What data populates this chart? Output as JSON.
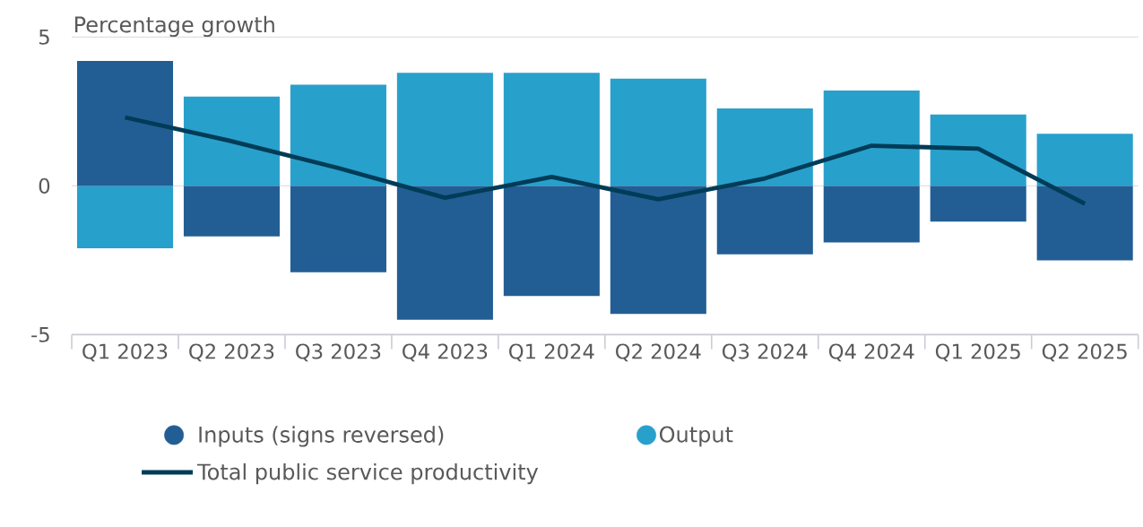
{
  "chart_data": {
    "type": "bar",
    "ylabel": "Percentage growth",
    "categories": [
      "Q1 2023",
      "Q2 2023",
      "Q3 2023",
      "Q4 2023",
      "Q1 2024",
      "Q2 2024",
      "Q3 2024",
      "Q4 2024",
      "Q1 2025",
      "Q2 2025"
    ],
    "series": [
      {
        "name": "Inputs (signs reversed)",
        "color": "#225e94",
        "values": [
          4.2,
          -1.7,
          -2.9,
          -4.5,
          -3.7,
          -4.3,
          -2.3,
          -1.9,
          -1.2,
          -2.5
        ]
      },
      {
        "name": "Output",
        "color": "#28a0cc",
        "values": [
          -2.1,
          3.0,
          3.4,
          3.8,
          3.8,
          3.6,
          2.6,
          3.2,
          2.4,
          1.75
        ]
      },
      {
        "name": "Total public service productivity",
        "type": "line",
        "color": "#003c57",
        "values": [
          2.3,
          1.5,
          0.6,
          -0.4,
          0.3,
          -0.45,
          0.25,
          1.35,
          1.25,
          -0.6
        ]
      }
    ],
    "stacked": true,
    "ylim": [
      -5,
      5
    ],
    "yticks": [
      -5,
      0,
      5
    ],
    "grid": "y",
    "legend": "bottom"
  }
}
